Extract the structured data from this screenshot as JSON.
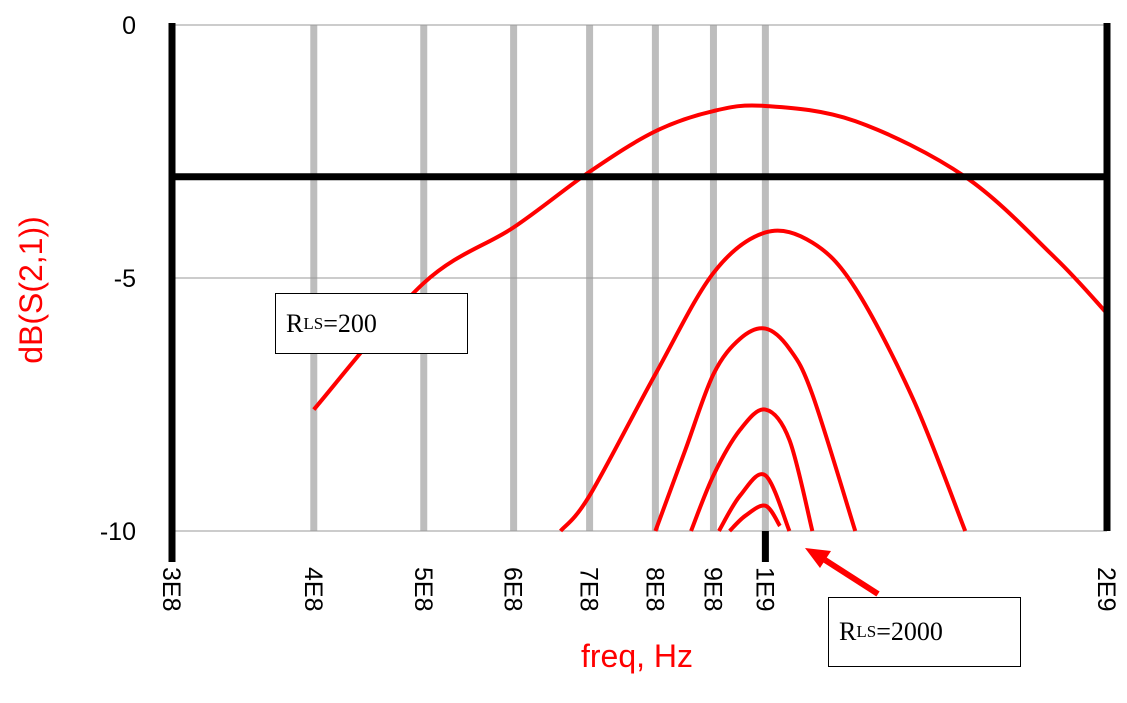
{
  "chart_data": {
    "type": "line",
    "xlabel": "freq, Hz",
    "ylabel": "dB(S(2,1))",
    "xscale": "log",
    "xlim": [
      300000000.0,
      2000000000.0
    ],
    "ylim": [
      -10,
      0
    ],
    "x_ticks": [
      {
        "value": 300000000.0,
        "label": "3E8"
      },
      {
        "value": 400000000.0,
        "label": "4E8"
      },
      {
        "value": 500000000.0,
        "label": "5E8"
      },
      {
        "value": 600000000.0,
        "label": "6E8"
      },
      {
        "value": 700000000.0,
        "label": "7E8"
      },
      {
        "value": 800000000.0,
        "label": "8E8"
      },
      {
        "value": 900000000.0,
        "label": "9E8"
      },
      {
        "value": 1000000000.0,
        "label": "1E9"
      },
      {
        "value": 2000000000.0,
        "label": "2E9"
      }
    ],
    "y_ticks": [
      {
        "value": 0,
        "label": "0"
      },
      {
        "value": -5,
        "label": "-5"
      },
      {
        "value": -10,
        "label": "-10"
      }
    ],
    "grid": true,
    "reference_line_db": -3,
    "line_color": "#ff0000",
    "series": [
      {
        "x": [
          400000000.0,
          500000000.0,
          600000000.0,
          700000000.0,
          800000000.0,
          900000000.0,
          1000000000.0,
          1200000000.0,
          1500000000.0,
          1800000000.0,
          2000000000.0
        ],
        "y": [
          -7.6,
          -5.1,
          -4.0,
          -2.9,
          -2.1,
          -1.7,
          -1.6,
          -1.9,
          -3.0,
          -4.6,
          -5.7
        ]
      },
      {
        "x": [
          660000000.0,
          700000000.0,
          800000000.0,
          900000000.0,
          1000000000.0,
          1100000000.0,
          1200000000.0,
          1350000000.0,
          1500000000.0
        ],
        "y": [
          -10,
          -9.3,
          -6.9,
          -4.9,
          -4.1,
          -4.3,
          -5.2,
          -7.4,
          -10
        ]
      },
      {
        "x": [
          800000000.0,
          850000000.0,
          900000000.0,
          950000000.0,
          1000000000.0,
          1050000000.0,
          1100000000.0,
          1200000000.0
        ],
        "y": [
          -10,
          -8.4,
          -6.9,
          -6.2,
          -6.0,
          -6.4,
          -7.3,
          -10
        ]
      },
      {
        "x": [
          860000000.0,
          900000000.0,
          950000000.0,
          1000000000.0,
          1050000000.0,
          1100000000.0
        ],
        "y": [
          -10,
          -8.9,
          -8.0,
          -7.6,
          -8.2,
          -10
        ]
      },
      {
        "x": [
          910000000.0,
          950000000.0,
          1000000000.0,
          1050000000.0
        ],
        "y": [
          -10,
          -9.3,
          -8.9,
          -10
        ]
      },
      {
        "x": [
          930000000.0,
          960000000.0,
          1000000000.0,
          1030000000.0
        ],
        "y": [
          -10,
          -9.7,
          -9.5,
          -9.9
        ]
      }
    ],
    "annotations": [
      {
        "rs": "R",
        "sub": "LS",
        "value": "=200"
      },
      {
        "rs": "R",
        "sub": "LS",
        "value": "=2000"
      }
    ]
  }
}
